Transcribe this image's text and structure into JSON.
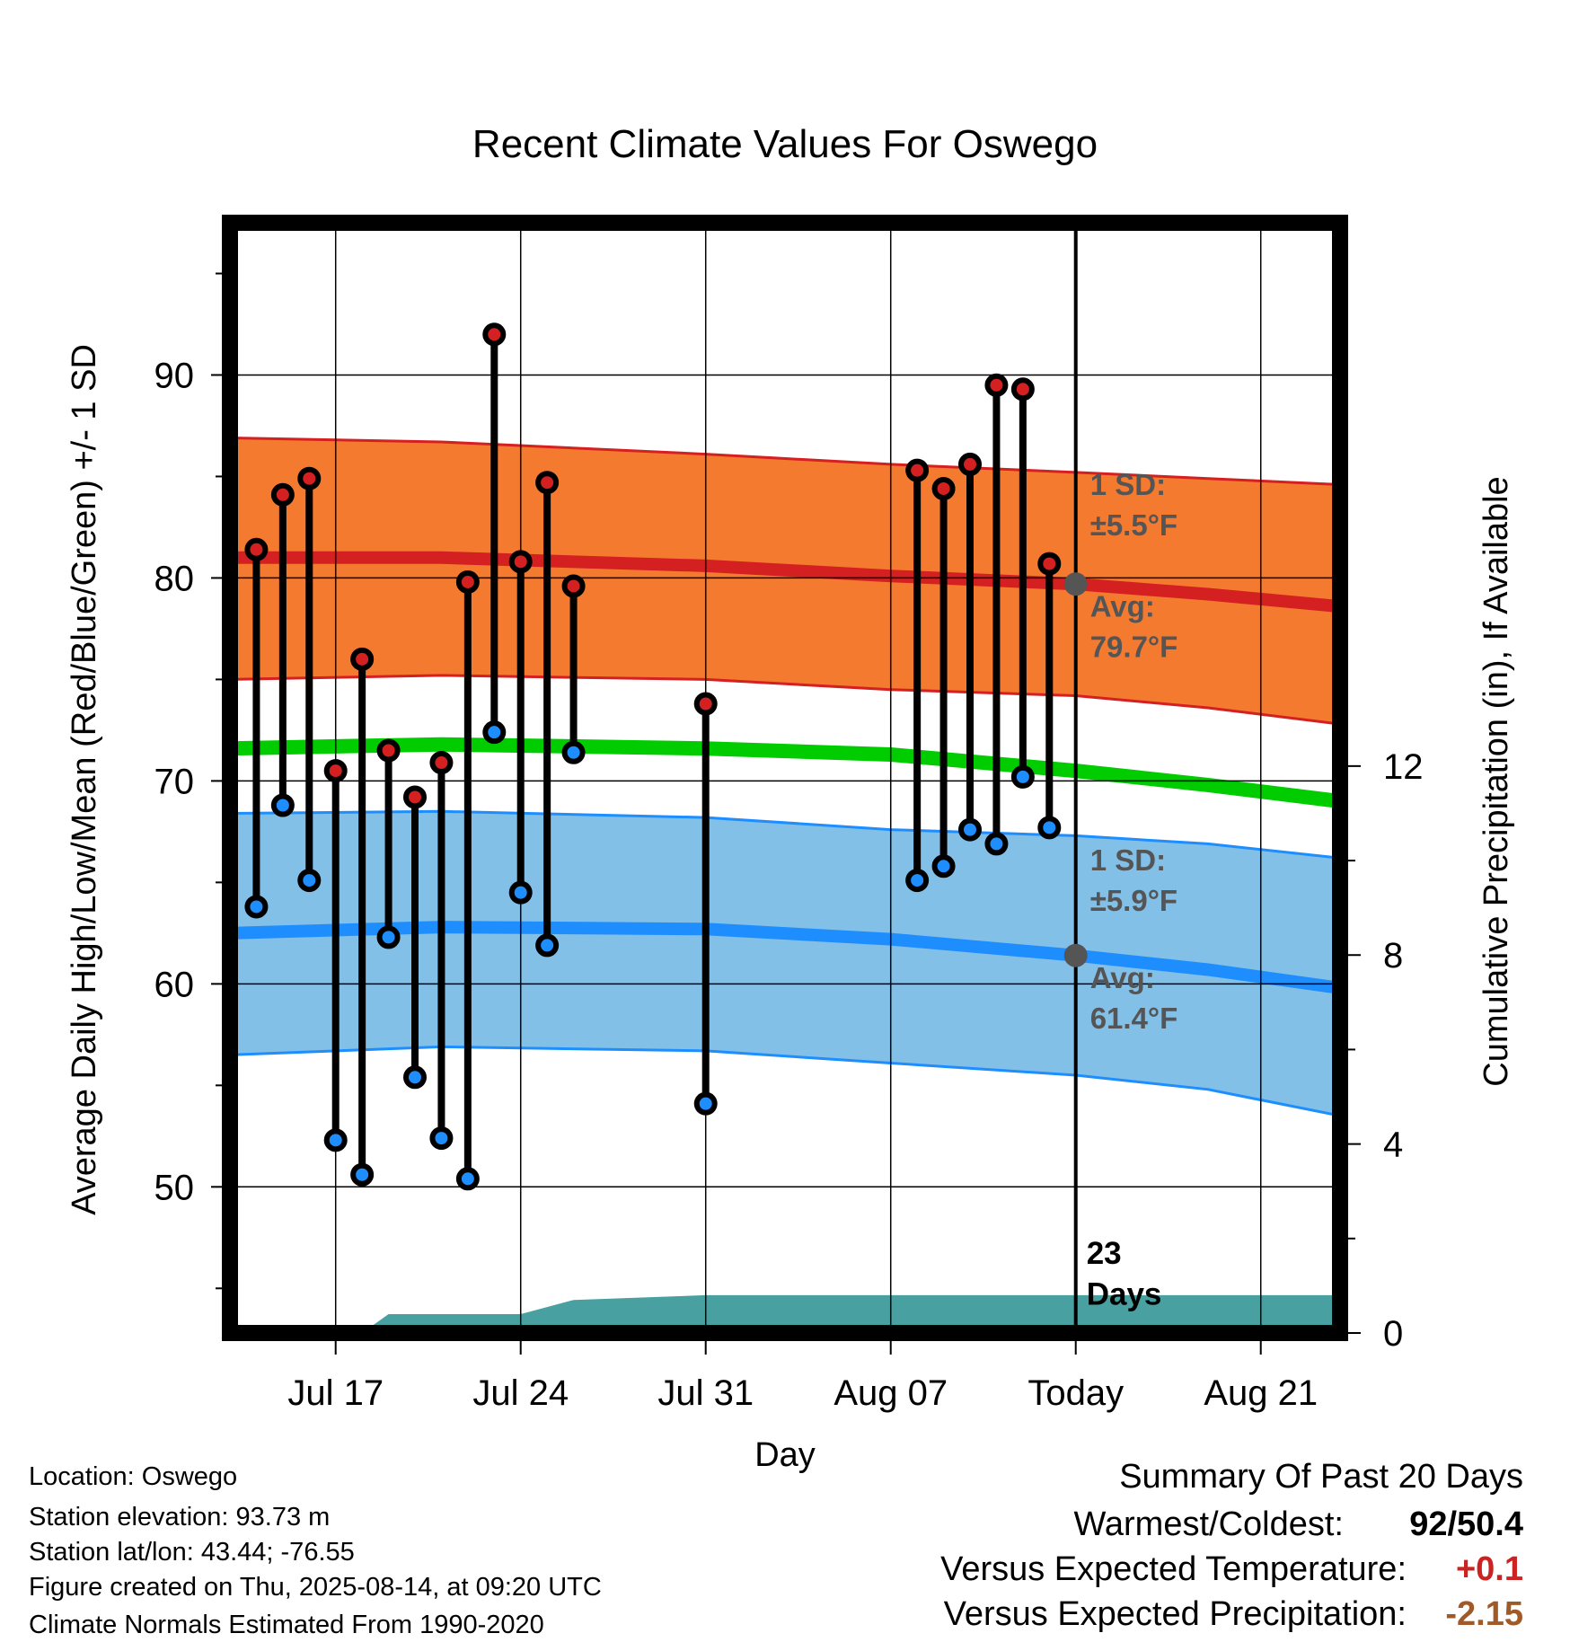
{
  "chart_data": {
    "type": "line",
    "title": "Recent Climate Values For Oswego",
    "xlabel": "Day",
    "ylabel": "Average Daily High/Low/Mean (Red/Blue/Green) +/- 1 SD",
    "y2label": "Cumulative Precipitation (in), If Available",
    "xlim": [
      "2025-07-13",
      "2025-08-24"
    ],
    "ylim": [
      42.8,
      97.5
    ],
    "y2lim": [
      0,
      23.5
    ],
    "xticks": [
      {
        "date": "2025-07-17",
        "label": "Jul 17"
      },
      {
        "date": "2025-07-24",
        "label": "Jul 24"
      },
      {
        "date": "2025-07-31",
        "label": "Jul 31"
      },
      {
        "date": "2025-08-07",
        "label": "Aug 07"
      },
      {
        "date": "2025-08-14",
        "label": "Today"
      },
      {
        "date": "2025-08-21",
        "label": "Aug 21"
      }
    ],
    "yticks": [
      50,
      60,
      70,
      80,
      90
    ],
    "y2ticks": [
      0,
      4,
      8,
      12
    ],
    "grid": true,
    "daily": [
      {
        "date": "2025-07-14",
        "high": 81.4,
        "low": 63.8
      },
      {
        "date": "2025-07-15",
        "high": 84.1,
        "low": 68.8
      },
      {
        "date": "2025-07-16",
        "high": 84.9,
        "low": 65.1
      },
      {
        "date": "2025-07-17",
        "high": 70.5,
        "low": 52.3
      },
      {
        "date": "2025-07-18",
        "high": 76.0,
        "low": 50.6
      },
      {
        "date": "2025-07-19",
        "high": 71.5,
        "low": 62.3
      },
      {
        "date": "2025-07-20",
        "high": 69.2,
        "low": 55.4
      },
      {
        "date": "2025-07-21",
        "high": 70.9,
        "low": 52.4
      },
      {
        "date": "2025-07-22",
        "high": 79.8,
        "low": 50.4
      },
      {
        "date": "2025-07-23",
        "high": 92.0,
        "low": 72.4
      },
      {
        "date": "2025-07-24",
        "high": 80.8,
        "low": 64.5
      },
      {
        "date": "2025-07-25",
        "high": 84.7,
        "low": 61.9
      },
      {
        "date": "2025-07-26",
        "high": 79.6,
        "low": 71.4
      },
      {
        "date": "2025-07-31",
        "high": 73.8,
        "low": 54.1
      },
      {
        "date": "2025-08-08",
        "high": 85.3,
        "low": 65.1
      },
      {
        "date": "2025-08-09",
        "high": 84.4,
        "low": 65.8
      },
      {
        "date": "2025-08-10",
        "high": 85.6,
        "low": 67.6
      },
      {
        "date": "2025-08-11",
        "high": 89.5,
        "low": 66.9
      },
      {
        "date": "2025-08-12",
        "high": 89.3,
        "low": 70.2
      },
      {
        "date": "2025-08-13",
        "high": 80.7,
        "low": 67.7
      }
    ],
    "normals": {
      "dates": [
        "2025-07-13",
        "2025-07-21",
        "2025-07-31",
        "2025-08-07",
        "2025-08-14",
        "2025-08-19",
        "2025-08-24"
      ],
      "high_avg": [
        81.0,
        81.0,
        80.6,
        80.1,
        79.7,
        79.2,
        78.6
      ],
      "high_upper": [
        86.9,
        86.7,
        86.1,
        85.6,
        85.2,
        84.9,
        84.6
      ],
      "high_lower": [
        75.0,
        75.2,
        75.0,
        74.5,
        74.2,
        73.6,
        72.8
      ],
      "mean_avg": [
        71.6,
        71.8,
        71.6,
        71.3,
        70.5,
        69.8,
        69.0
      ],
      "low_avg": [
        62.5,
        62.8,
        62.7,
        62.2,
        61.4,
        60.7,
        59.8
      ],
      "low_upper": [
        68.4,
        68.5,
        68.2,
        67.6,
        67.3,
        66.9,
        66.2
      ],
      "low_lower": [
        56.5,
        56.9,
        56.7,
        56.1,
        55.5,
        54.8,
        53.5
      ]
    },
    "precip_cumulative": {
      "dates": [
        "2025-07-13",
        "2025-07-18",
        "2025-07-19",
        "2025-07-24",
        "2025-07-26",
        "2025-07-31",
        "2025-08-14",
        "2025-08-24"
      ],
      "values": [
        0,
        0,
        0.4,
        0.4,
        0.7,
        0.8,
        0.8,
        0.8
      ]
    },
    "annotations": {
      "high_sd": [
        "1 SD:",
        "±5.5°F"
      ],
      "high_avg": [
        "Avg:",
        "79.7°F"
      ],
      "low_sd": [
        "1 SD:",
        "±5.9°F"
      ],
      "low_avg": [
        "Avg:",
        "61.4°F"
      ],
      "days": [
        "23",
        "Days"
      ]
    }
  },
  "colors": {
    "high_band": "#f47a30",
    "high_line": "#d42020",
    "mean_line": "#00cc00",
    "low_band": "#82c0e8",
    "low_line": "#1e8eff",
    "high_dot": "#d42020",
    "low_dot": "#1e8eff",
    "precip": "#48a0a0",
    "annotation": "#555555",
    "summary_temp": "#cc2222",
    "summary_precip": "#a05a28"
  },
  "info": {
    "location": "Location: Oswego",
    "elevation": "Station elevation: 93.73 m",
    "latlon": "Station lat/lon: 43.44; -76.55",
    "created": "Figure created on Thu, 2025-08-14, at 09:20 UTC",
    "normals": "Climate Normals Estimated From 1990-2020"
  },
  "summary": {
    "title": "Summary Of Past 20 Days",
    "warmest_label": "Warmest/Coldest:",
    "warmest_value": "92/50.4",
    "temp_label": "Versus Expected Temperature:",
    "temp_value": "+0.1",
    "precip_label": "Versus Expected Precipitation:",
    "precip_value": "-2.15"
  }
}
